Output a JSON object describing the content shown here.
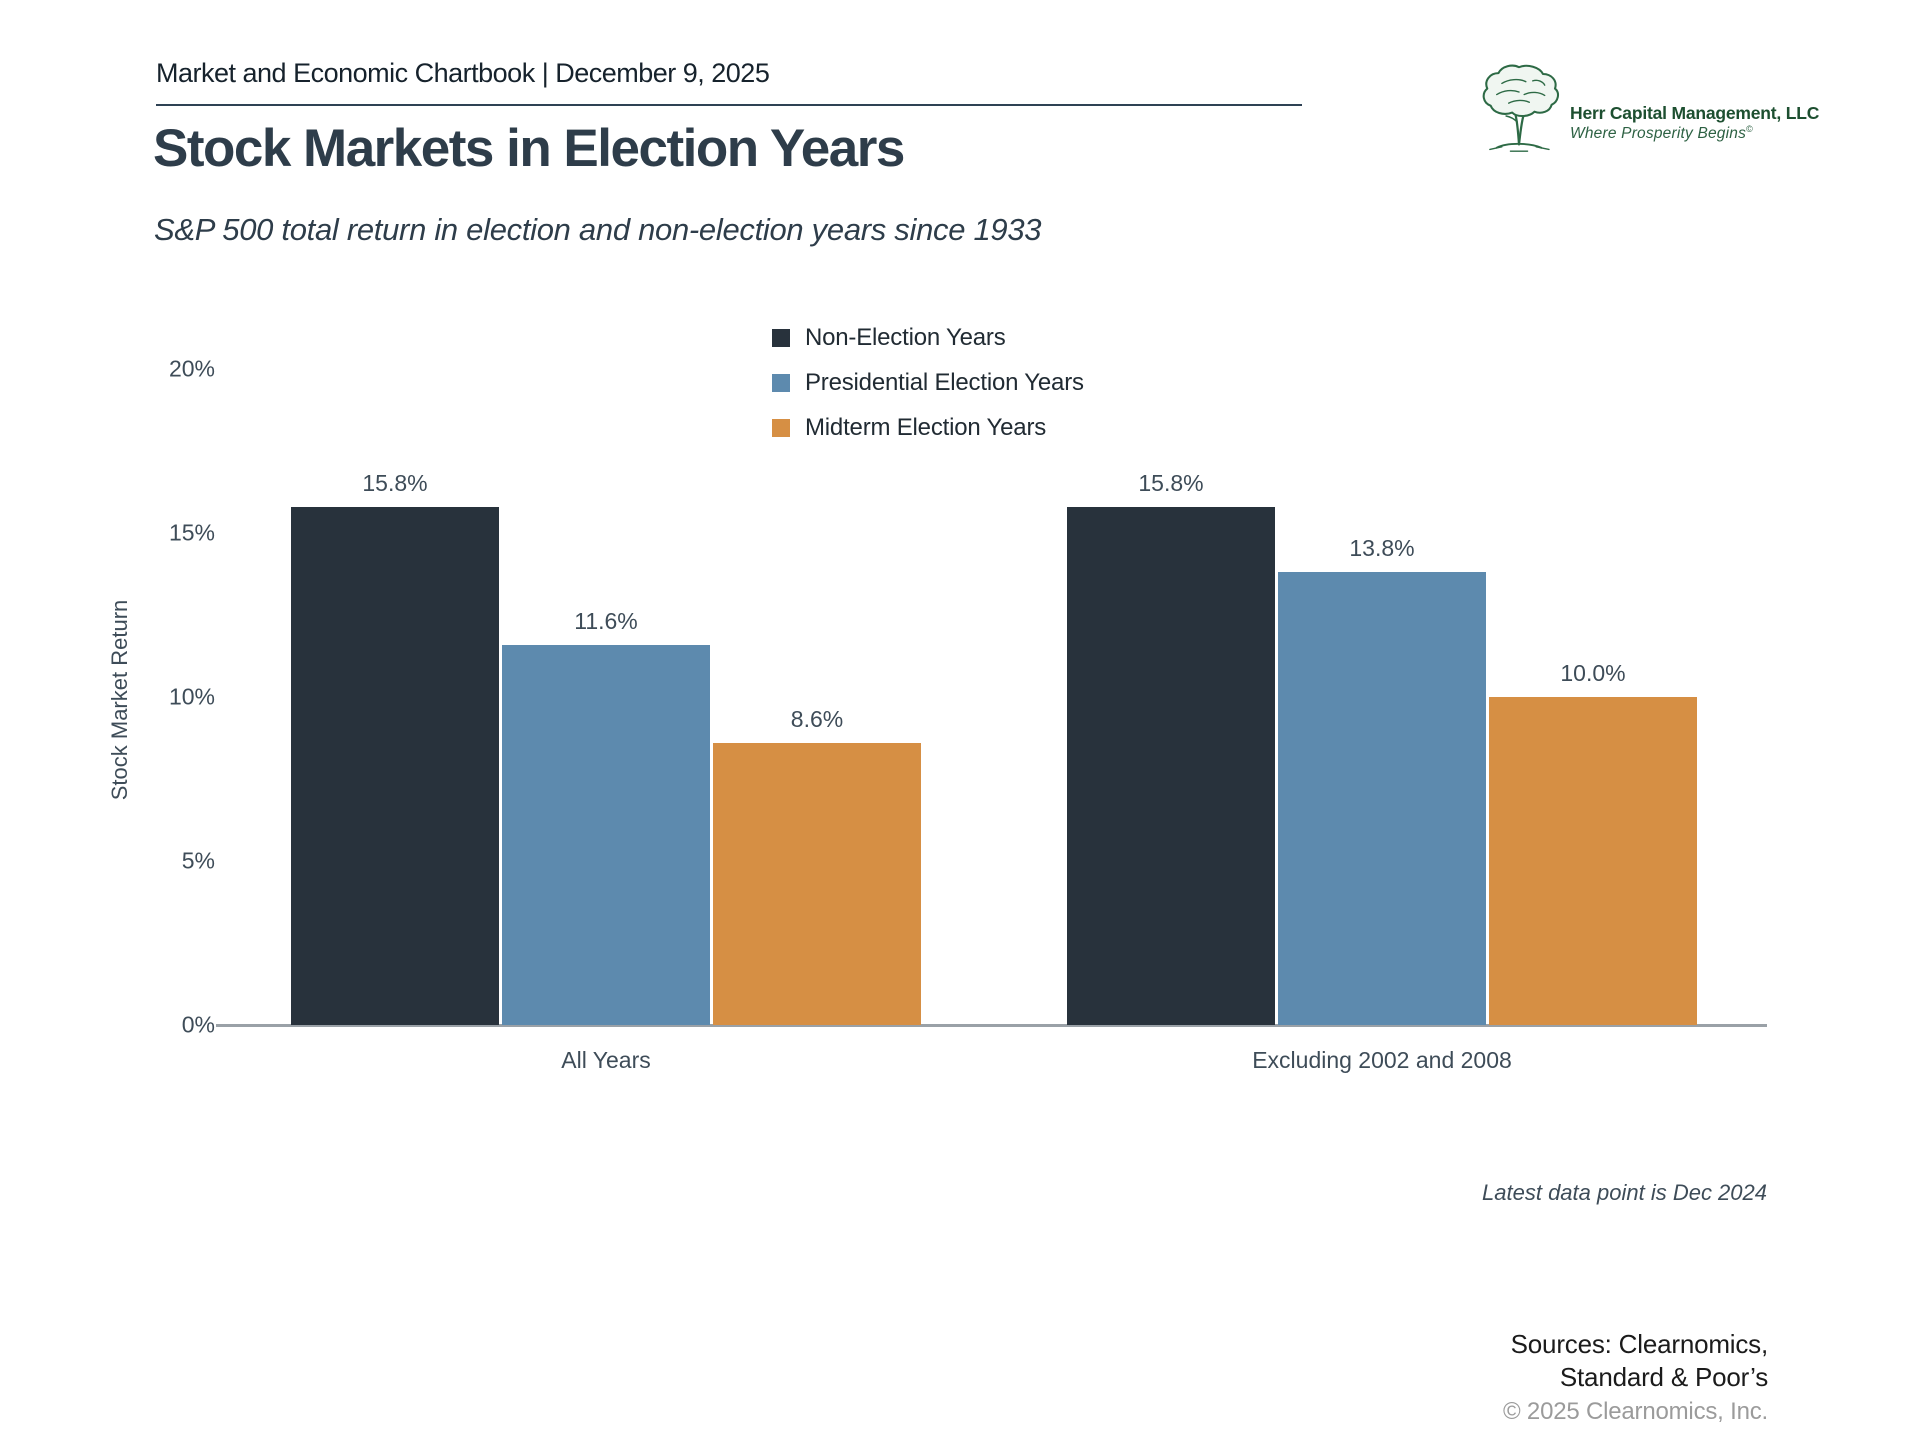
{
  "header": {
    "text": "Market and Economic Chartbook | December 9, 2025"
  },
  "logo": {
    "company": "Herr Capital Management, LLC",
    "tagline": "Where Prosperity Begins",
    "tagline_symbol": "©",
    "green": "#2d6a45"
  },
  "title": "Stock Markets in Election Years",
  "subtitle": "S&P 500 total return in election and non-election years since 1933",
  "footnote": "Latest data point is Dec 2024",
  "sources": {
    "line1": "Sources: Clearnomics,",
    "line2": "Standard & Poor’s"
  },
  "copyright": "© 2025 Clearnomics, Inc.",
  "colors": {
    "non_election": "#28323c",
    "presidential": "#5d8aae",
    "midterm": "#d68f44",
    "axis_line": "#9aa1a7",
    "label_text": "#3e4c58"
  },
  "chart_data": {
    "type": "bar",
    "title": "Stock Markets in Election Years",
    "xlabel": "",
    "ylabel": "Stock Market Return",
    "categories": [
      "All Years",
      "Excluding 2002 and 2008"
    ],
    "series": [
      {
        "name": "Non-Election Years",
        "color": "#28323c",
        "values": [
          15.8,
          15.8
        ]
      },
      {
        "name": "Presidential Election Years",
        "color": "#5d8aae",
        "values": [
          11.6,
          13.8
        ]
      },
      {
        "name": "Midterm Election Years",
        "color": "#d68f44",
        "values": [
          8.6,
          10.0
        ]
      }
    ],
    "value_labels": [
      [
        "15.8%",
        "11.6%",
        "8.6%"
      ],
      [
        "15.8%",
        "13.8%",
        "10.0%"
      ]
    ],
    "y_ticks": [
      "0%",
      "5%",
      "10%",
      "15%",
      "20%"
    ],
    "ylim": [
      0,
      20
    ],
    "grid": false,
    "legend_position": "top-center"
  }
}
